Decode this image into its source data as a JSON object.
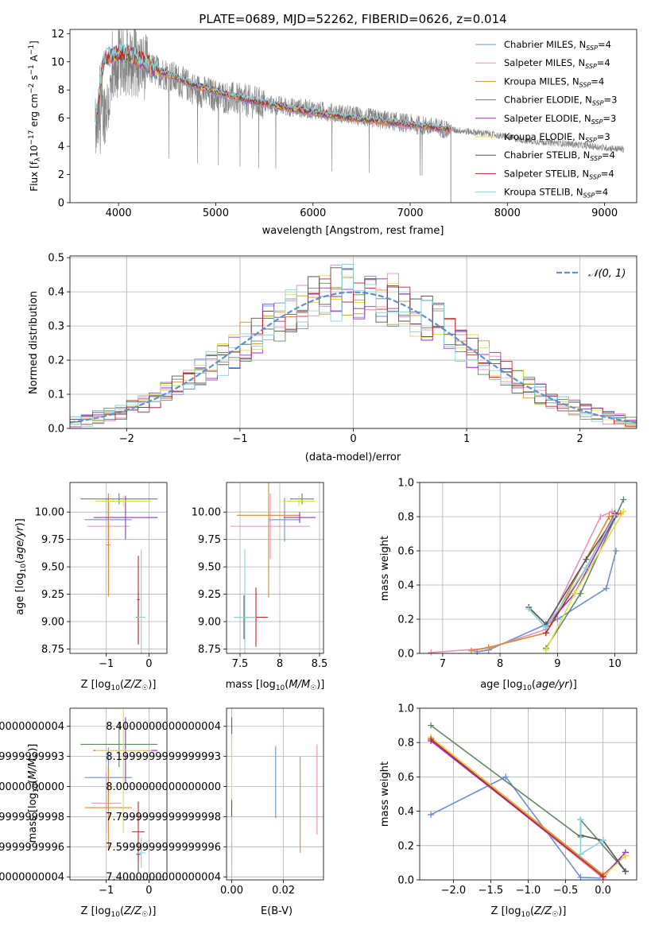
{
  "chart_data": [
    {
      "id": "spectrum",
      "type": "line",
      "title": "PLATE=0689, MJD=52262, FIBERID=0626, z=0.014",
      "xlabel": "wavelength [Angstrom, rest frame]",
      "ylabel": "Flux [f_λ 10^-17 erg cm^-2 s^-1 A^-1]",
      "xlim": [
        3500,
        9330
      ],
      "ylim": [
        0,
        12.3
      ],
      "xticks": [
        4000,
        5000,
        6000,
        7000,
        8000,
        9000
      ],
      "yticks": [
        0,
        2,
        4,
        6,
        8,
        10,
        12
      ],
      "data_color": "#808080",
      "data_coverage": [
        3760,
        9200
      ],
      "model_coverage": [
        3760,
        7420
      ],
      "data_shape": {
        "x": [
          3760,
          3900,
          4000,
          4200,
          4500,
          4800,
          5000,
          5500,
          6000,
          6500,
          7000,
          7400,
          7800,
          8200,
          8600,
          9000,
          9200
        ],
        "y": [
          5.0,
          7.2,
          10.0,
          9.8,
          9.1,
          8.0,
          7.6,
          7.0,
          6.6,
          6.1,
          5.6,
          5.2,
          4.9,
          4.4,
          4.2,
          3.9,
          3.8
        ]
      },
      "legend": [
        {
          "label": "Chabrier MILES, N",
          "sub": "SSP",
          "suffix": "=4",
          "color": "#6a8fd6"
        },
        {
          "label": "Salpeter MILES, N",
          "sub": "SSP",
          "suffix": "=4",
          "color": "#e88fbc"
        },
        {
          "label": "Kroupa MILES, N",
          "sub": "SSP",
          "suffix": "=4",
          "color": "#d88a2e"
        },
        {
          "label": "Chabrier ELODIE, N",
          "sub": "SSP",
          "suffix": "=3",
          "color": "#5f8a5e"
        },
        {
          "label": "Salpeter ELODIE, N",
          "sub": "SSP",
          "suffix": "=3",
          "color": "#9b30c8"
        },
        {
          "label": "Kroupa ELODIE, N",
          "sub": "SSP",
          "suffix": "=3",
          "color": "#dede44"
        },
        {
          "label": "Chabrier STELIB, N",
          "sub": "SSP",
          "suffix": "=4",
          "color": "#555555"
        },
        {
          "label": "Salpeter STELIB, N",
          "sub": "SSP",
          "suffix": "=4",
          "color": "#c0282d"
        },
        {
          "label": "Kroupa STELIB, N",
          "sub": "SSP",
          "suffix": "=4",
          "color": "#86d4de"
        }
      ],
      "legend_placement": "upper-right"
    },
    {
      "id": "residuals",
      "type": "histogram",
      "xlabel": "(data-model)/error",
      "ylabel": "Normed distribution",
      "xlim": [
        -2.5,
        2.5
      ],
      "ylim": [
        0,
        0.505
      ],
      "xticks": [
        -2,
        -1,
        0,
        1,
        2
      ],
      "yticks": [
        0.0,
        0.1,
        0.2,
        0.3,
        0.4,
        0.5
      ],
      "grid": true,
      "bin_width": 0.1,
      "gaussian_label": "𝒩(0, 1)",
      "gaussian_color": "#5b8fd6",
      "legend_placement": "upper-right"
    },
    {
      "id": "age-vs-Z",
      "type": "errorbar",
      "xlabel": "Z [log10(Z/Z☉)]",
      "ylabel": "age  [log10(age/yr)]",
      "xlim": [
        -1.85,
        0.42
      ],
      "ylim": [
        8.71,
        10.27
      ],
      "xticks": [
        -1,
        0
      ],
      "yticks": [
        8.75,
        9.0,
        9.25,
        9.5,
        9.75,
        10.0
      ],
      "grid": true,
      "points": [
        {
          "x": -0.95,
          "y": 9.93,
          "xerr": 0.55,
          "yerr": 0.2,
          "c": 0
        },
        {
          "x": -0.95,
          "y": 9.87,
          "xerr": 0.5,
          "yerr": 0.3,
          "c": 1
        },
        {
          "x": -0.95,
          "y": 9.7,
          "xerr": 0.05,
          "yerr": 0.47,
          "c": 2
        },
        {
          "x": -0.7,
          "y": 10.12,
          "xerr": 0.9,
          "yerr": 0.05,
          "c": 3
        },
        {
          "x": -0.55,
          "y": 9.95,
          "xerr": 0.75,
          "yerr": 0.2,
          "c": 4
        },
        {
          "x": -0.6,
          "y": 10.1,
          "xerr": 0.65,
          "yerr": 0.05,
          "c": 5
        },
        {
          "x": -0.25,
          "y": 9.04,
          "xerr": 0.05,
          "yerr": 0.25,
          "c": 6
        },
        {
          "x": -0.25,
          "y": 9.2,
          "xerr": 0.03,
          "yerr": 0.4,
          "c": 7
        },
        {
          "x": -0.18,
          "y": 9.04,
          "xerr": 0.1,
          "yerr": 0.62,
          "c": 8
        }
      ]
    },
    {
      "id": "age-vs-mass",
      "type": "errorbar",
      "xlabel": "mass [log10(M/M☉)]",
      "ylabel": "",
      "xlim": [
        7.33,
        8.55
      ],
      "ylim": [
        8.71,
        10.27
      ],
      "xticks": [
        7.5,
        8.0,
        8.5
      ],
      "yticks": [
        8.75,
        9.0,
        9.25,
        9.5,
        9.75,
        10.0
      ],
      "grid": true,
      "points": [
        {
          "x": 8.06,
          "y": 9.93,
          "xerr": 0.2,
          "yerr": 0.2,
          "c": 0
        },
        {
          "x": 7.88,
          "y": 9.87,
          "xerr": 0.5,
          "yerr": 0.3,
          "c": 1
        },
        {
          "x": 7.86,
          "y": 9.97,
          "xerr": 0.4,
          "yerr": 0.75,
          "c": 2
        },
        {
          "x": 8.28,
          "y": 10.12,
          "xerr": 0.15,
          "yerr": 0.05,
          "c": 3
        },
        {
          "x": 8.25,
          "y": 9.95,
          "xerr": 0.2,
          "yerr": 0.05,
          "c": 4
        },
        {
          "x": 8.24,
          "y": 10.1,
          "xerr": 0.2,
          "yerr": 0.05,
          "c": 5
        },
        {
          "x": 7.55,
          "y": 9.04,
          "xerr": 0.12,
          "yerr": 0.2,
          "c": 6
        },
        {
          "x": 7.7,
          "y": 9.04,
          "xerr": 0.15,
          "yerr": 0.27,
          "c": 7
        },
        {
          "x": 7.56,
          "y": 9.04,
          "xerr": 0.14,
          "yerr": 0.62,
          "c": 8
        }
      ]
    },
    {
      "id": "weight-vs-age",
      "type": "line",
      "xlabel": "age  [log10(age/yr)]",
      "ylabel": "mass weight",
      "xlim": [
        6.6,
        10.38
      ],
      "ylim": [
        0,
        1.0
      ],
      "xticks": [
        7,
        8,
        9,
        10
      ],
      "yticks": [
        0.0,
        0.2,
        0.4,
        0.6,
        0.8,
        1.0
      ],
      "grid": true,
      "series": [
        {
          "c": 0,
          "x": [
            7.6,
            7.8,
            9.0,
            9.85,
            10.02
          ],
          "y": [
            0.01,
            0.02,
            0.2,
            0.38,
            0.6
          ]
        },
        {
          "c": 1,
          "x": [
            6.8,
            7.8,
            8.8,
            9.75,
            9.95
          ],
          "y": [
            0.005,
            0.03,
            0.14,
            0.8,
            0.83
          ]
        },
        {
          "c": 2,
          "x": [
            7.5,
            7.8,
            8.8,
            9.9,
            10.1
          ],
          "y": [
            0.015,
            0.035,
            0.12,
            0.8,
            0.82
          ]
        },
        {
          "c": 3,
          "x": [
            8.8,
            9.4,
            10.15
          ],
          "y": [
            0.03,
            0.35,
            0.9
          ]
        },
        {
          "c": 4,
          "x": [
            8.8,
            9.3,
            10.02
          ],
          "y": [
            0.16,
            0.35,
            0.81
          ]
        },
        {
          "c": 5,
          "x": [
            8.8,
            9.3,
            10.15
          ],
          "y": [
            0.02,
            0.35,
            0.83
          ]
        },
        {
          "c": 6,
          "x": [
            8.5,
            8.8,
            9.5,
            10.0
          ],
          "y": [
            0.27,
            0.17,
            0.55,
            0.8
          ]
        },
        {
          "c": 7,
          "x": [
            8.8,
            9.5,
            10.0
          ],
          "y": [
            0.12,
            0.5,
            0.82
          ]
        },
        {
          "c": 8,
          "x": [
            8.5,
            8.8,
            9.5,
            10.0
          ],
          "y": [
            0.26,
            0.15,
            0.5,
            0.81
          ]
        }
      ]
    },
    {
      "id": "mass-vs-Z",
      "type": "errorbar",
      "xlabel": "Z [log10(Z/Z☉)]",
      "ylabel": "mass [log10(M/M☉)]",
      "xlim": [
        -1.85,
        0.42
      ],
      "ylim": [
        7.38,
        8.52
      ],
      "xticks": [
        -1,
        0
      ],
      "yticks": [
        7.4,
        7.6,
        7.8,
        8.0,
        8.2,
        8.4
      ],
      "grid": true,
      "points": [
        {
          "x": -0.95,
          "y": 8.06,
          "xerr": 0.55,
          "yerr": 0.2,
          "c": 0
        },
        {
          "x": -1.0,
          "y": 7.89,
          "xerr": 0.35,
          "yerr": 0.2,
          "c": 1
        },
        {
          "x": -0.95,
          "y": 7.86,
          "xerr": 0.55,
          "yerr": 0.28,
          "c": 2
        },
        {
          "x": -0.7,
          "y": 8.28,
          "xerr": 0.9,
          "yerr": 0.15,
          "c": 3
        },
        {
          "x": -0.55,
          "y": 8.24,
          "xerr": 0.75,
          "yerr": 0.22,
          "c": 4
        },
        {
          "x": -0.6,
          "y": 8.24,
          "xerr": 0.65,
          "yerr": 0.55,
          "c": 5
        },
        {
          "x": -0.25,
          "y": 7.55,
          "xerr": 0.05,
          "yerr": 0.12,
          "c": 6
        },
        {
          "x": -0.25,
          "y": 7.7,
          "xerr": 0.15,
          "yerr": 0.2,
          "c": 7
        },
        {
          "x": -0.18,
          "y": 7.56,
          "xerr": 0.1,
          "yerr": 0.1,
          "c": 8
        }
      ]
    },
    {
      "id": "mass-vs-EBV",
      "type": "errorbar",
      "xlabel": "E(B-V)",
      "ylabel": "",
      "xlim": [
        -0.002,
        0.0355
      ],
      "ylim": [
        7.38,
        8.52
      ],
      "xticks": [
        0.0,
        0.02
      ],
      "tick_labels": [
        "0.00",
        "0.02"
      ],
      "yticks": [
        7.4,
        7.6,
        7.8,
        8.0,
        8.2,
        8.4
      ],
      "grid": true,
      "points": [
        {
          "x": 0.017,
          "y": 8.03,
          "xerr": 0,
          "yerr": 0.24,
          "c": 0
        },
        {
          "x": 0.033,
          "y": 7.98,
          "xerr": 0,
          "yerr": 0.3,
          "c": 1
        },
        {
          "x": 0.0265,
          "y": 7.88,
          "xerr": 0,
          "yerr": 0.32,
          "c": 2
        },
        {
          "x": 0.0,
          "y": 8.3,
          "xerr": 0,
          "yerr": 0.12,
          "c": 3
        },
        {
          "x": 0.0,
          "y": 8.38,
          "xerr": 0,
          "yerr": 0.08,
          "c": 4
        },
        {
          "x": 0.0,
          "y": 8.1,
          "xerr": 0,
          "yerr": 0.25,
          "c": 5
        },
        {
          "x": 0.0,
          "y": 7.55,
          "xerr": 0,
          "yerr": 0.08,
          "c": 6
        },
        {
          "x": 0.0,
          "y": 7.84,
          "xerr": 0,
          "yerr": 0.07,
          "c": 7
        },
        {
          "x": 0.0,
          "y": 7.6,
          "xerr": 0,
          "yerr": 0.2,
          "c": 8
        }
      ]
    },
    {
      "id": "weight-vs-Z",
      "type": "line",
      "xlabel": "Z [log10(Z/Z☉)]",
      "ylabel": "mass weight",
      "xlim": [
        -2.45,
        0.45
      ],
      "ylim": [
        0,
        1.0
      ],
      "xticks": [
        -2.0,
        -1.5,
        -1.0,
        -0.5,
        0.0
      ],
      "tick_labels": [
        "−2.0",
        "−1.5",
        "−1.0",
        "−0.5",
        "0.0"
      ],
      "yticks": [
        0.0,
        0.2,
        0.4,
        0.6,
        0.8,
        1.0
      ],
      "grid": true,
      "series": [
        {
          "c": 0,
          "x": [
            -2.3,
            -1.3,
            -0.3,
            0.0
          ],
          "y": [
            0.38,
            0.6,
            0.015,
            0.01
          ]
        },
        {
          "c": 1,
          "x": [
            -2.3,
            0.0,
            0.3
          ],
          "y": [
            0.82,
            0.01,
            0.16
          ]
        },
        {
          "c": 2,
          "x": [
            -2.3,
            0.0,
            0.3
          ],
          "y": [
            0.83,
            0.03,
            0.14
          ]
        },
        {
          "c": 3,
          "x": [
            -2.3,
            -0.3,
            -0.3,
            0.3
          ],
          "y": [
            0.9,
            0.25,
            0.35,
            0.05
          ]
        },
        {
          "c": 4,
          "x": [
            -2.3,
            0.0,
            0.3
          ],
          "y": [
            0.81,
            0.02,
            0.16
          ]
        },
        {
          "c": 5,
          "x": [
            -2.3,
            0.0,
            0.3
          ],
          "y": [
            0.83,
            0.02,
            0.14
          ]
        },
        {
          "c": 6,
          "x": [
            -0.3,
            -0.3,
            0.0,
            0.3
          ],
          "y": [
            0.35,
            0.26,
            0.23,
            0.05
          ]
        },
        {
          "c": 7,
          "x": [
            -2.3,
            0.0
          ],
          "y": [
            0.82,
            0.02
          ]
        },
        {
          "c": 8,
          "x": [
            -0.3,
            -0.3,
            0.0
          ],
          "y": [
            0.35,
            0.15,
            0.23
          ]
        }
      ]
    }
  ]
}
